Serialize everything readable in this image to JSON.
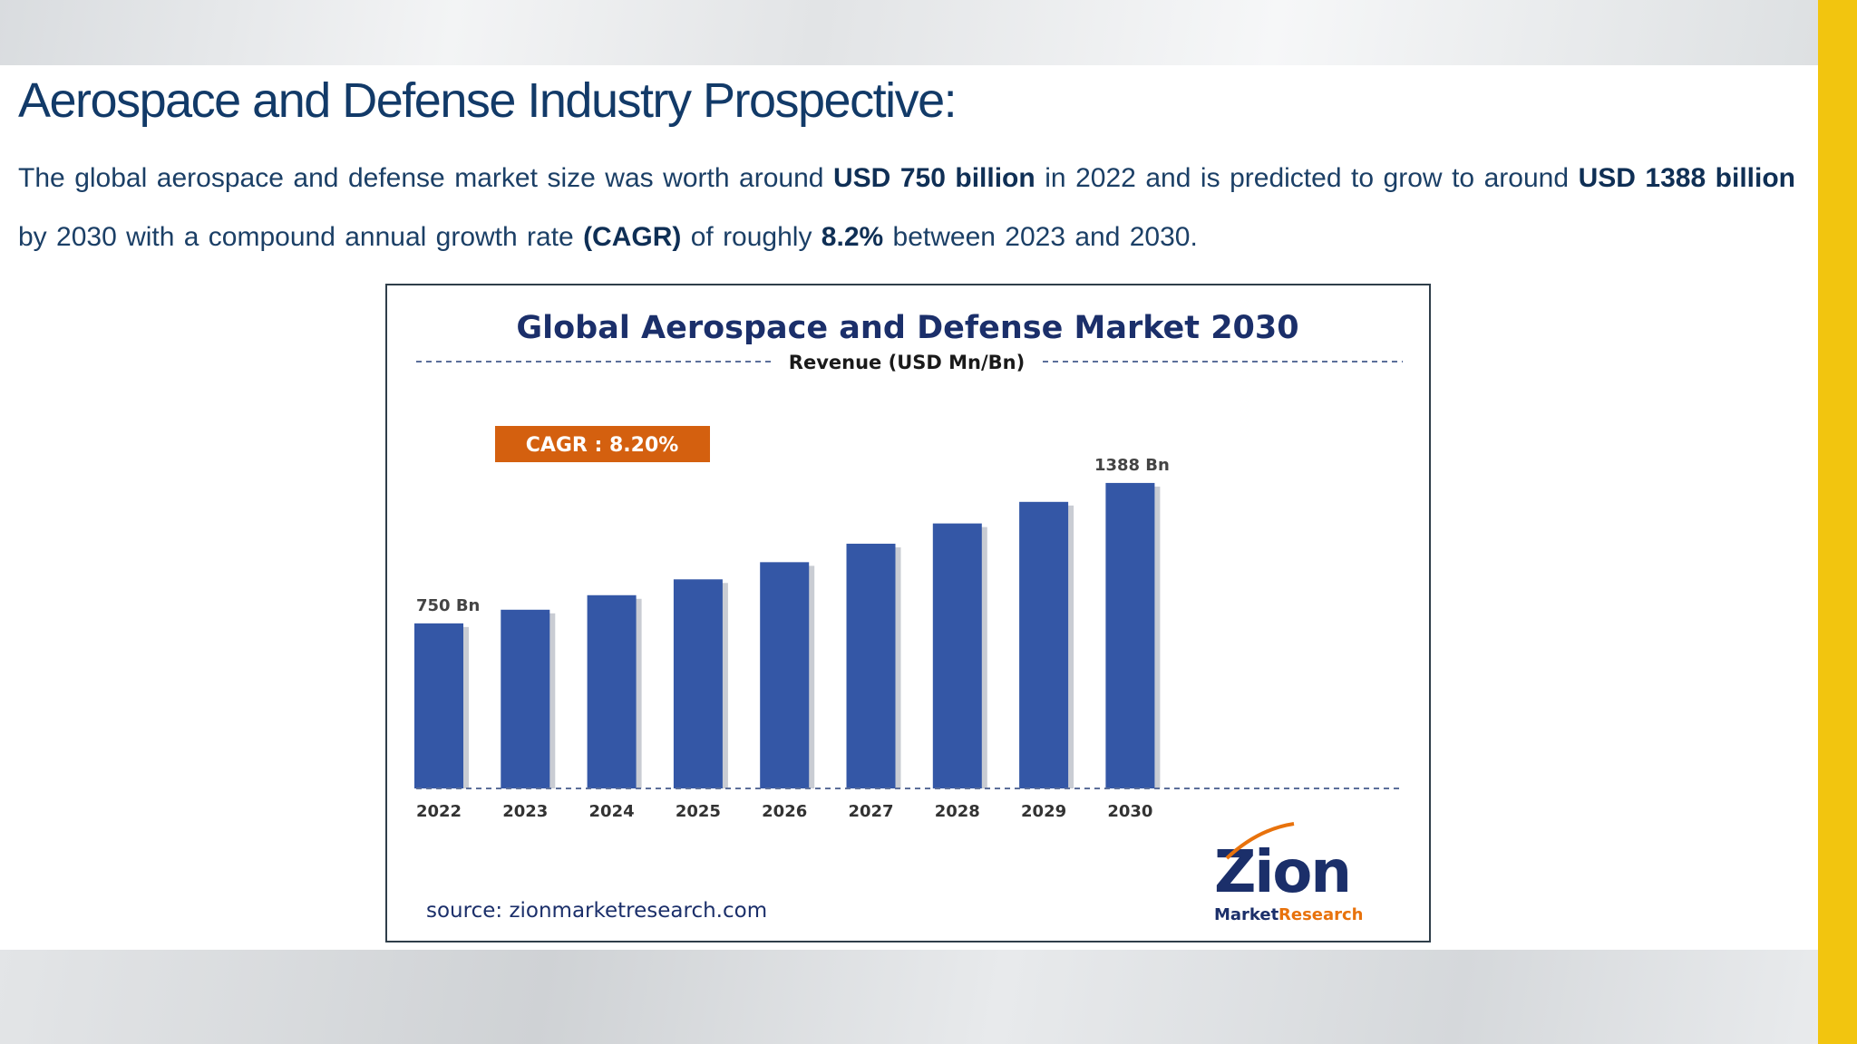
{
  "page": {
    "title": "Aerospace and Defense Industry Prospective:",
    "intro": {
      "t1": "The global aerospace and defense market size was worth around ",
      "b1": "USD 750 billion",
      "t2": " in 2022 and is predicted to grow to around ",
      "b2": "USD 1388 billion",
      "t3": " by 2030 with a compound annual growth rate ",
      "b3": "(CAGR)",
      "t4": " of roughly ",
      "b4": "8.2%",
      "t5": " between 2023 and 2030."
    }
  },
  "colors": {
    "bar": "#3457a6",
    "title": "#1b2f6a",
    "cagr_badge": "#d4600f",
    "accent_yellow": "#f2c50f",
    "logo_orange": "#e8720c"
  },
  "chart_data": {
    "type": "bar",
    "title": "Global Aerospace and Defense Market 2030",
    "subtitle": "Revenue (USD Mn/Bn)",
    "categories": [
      "2022",
      "2023",
      "2024",
      "2025",
      "2026",
      "2027",
      "2028",
      "2029",
      "2030"
    ],
    "values": [
      750,
      812,
      878,
      950,
      1028,
      1112,
      1204,
      1302,
      1388
    ],
    "data_labels": [
      {
        "index": 0,
        "text": "750 Bn"
      },
      {
        "index": 8,
        "text": "1388 Bn"
      }
    ],
    "annotation": "CAGR : 8.20%",
    "source": "source: zionmarketresearch.com",
    "ylim": [
      0,
      1400
    ],
    "grid": false,
    "logo": {
      "name": "Zion",
      "tagline_1": "Market",
      "tagline_2": "Research"
    }
  }
}
